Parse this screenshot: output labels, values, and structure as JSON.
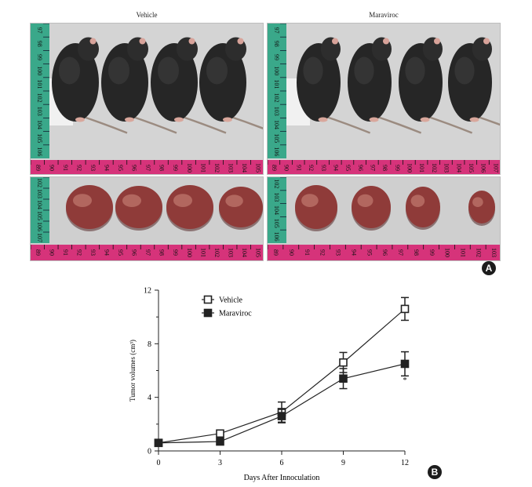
{
  "figure": {
    "panel_a": {
      "label": "A",
      "groups": [
        {
          "name": "Vehicle",
          "mice_count": 4,
          "tumor_count": 4,
          "ruler_vertical_mice": [
            "97",
            "98",
            "99",
            "100",
            "101",
            "102",
            "103",
            "104",
            "105",
            "106"
          ],
          "ruler_horizontal_mice": [
            "89",
            "90",
            "91",
            "92",
            "93",
            "94",
            "95",
            "96",
            "97",
            "98",
            "99",
            "100",
            "101",
            "102",
            "103",
            "104",
            "105"
          ],
          "ruler_vertical_tumors": [
            "102",
            "103",
            "104",
            "105",
            "106",
            "107"
          ],
          "ruler_horizontal_tumors": [
            "89",
            "90",
            "91",
            "92",
            "93",
            "94",
            "95",
            "96",
            "97",
            "98",
            "99",
            "100",
            "101",
            "102",
            "103",
            "104",
            "105"
          ]
        },
        {
          "name": "Maraviroc",
          "mice_count": 4,
          "tumor_count": 4,
          "ruler_vertical_mice": [
            "97",
            "98",
            "99",
            "100",
            "101",
            "102",
            "103",
            "104",
            "105",
            "106"
          ],
          "ruler_horizontal_mice": [
            "89",
            "90",
            "91",
            "92",
            "93",
            "94",
            "95",
            "96",
            "97",
            "98",
            "99",
            "100",
            "101",
            "102",
            "103",
            "104",
            "105",
            "106",
            "107"
          ],
          "ruler_vertical_tumors": [
            "102",
            "103",
            "104",
            "105",
            "106"
          ],
          "ruler_horizontal_tumors": [
            "89",
            "90",
            "91",
            "92",
            "93",
            "94",
            "95",
            "96",
            "97",
            "98",
            "99",
            "100",
            "101",
            "102",
            "103"
          ]
        }
      ]
    },
    "panel_b": {
      "label": "B"
    }
  },
  "chart_data": {
    "type": "line",
    "xlabel": "Days After Innoculation",
    "ylabel": "Tumor volumes (cm³)",
    "x": [
      0,
      3,
      6,
      9,
      12
    ],
    "xlim": [
      0,
      12
    ],
    "ylim": [
      0,
      12
    ],
    "xticks": [
      "0",
      "3",
      "6",
      "9",
      "12"
    ],
    "yticks": [
      "0",
      "4",
      "8",
      "12"
    ],
    "grid": false,
    "legend_position": "top-left",
    "series": [
      {
        "name": "Vehicle",
        "marker": "open-square",
        "values": [
          0.6,
          1.3,
          2.9,
          6.6,
          10.6
        ],
        "errors": [
          0.15,
          0.2,
          0.75,
          0.75,
          0.85
        ]
      },
      {
        "name": "Maraviroc",
        "marker": "filled-square",
        "values": [
          0.6,
          0.7,
          2.6,
          5.4,
          6.5
        ],
        "errors": [
          0.1,
          0.15,
          0.5,
          0.75,
          0.9
        ]
      }
    ],
    "annotations": [
      {
        "text": "*",
        "x": 12,
        "y": 5.1
      }
    ]
  }
}
